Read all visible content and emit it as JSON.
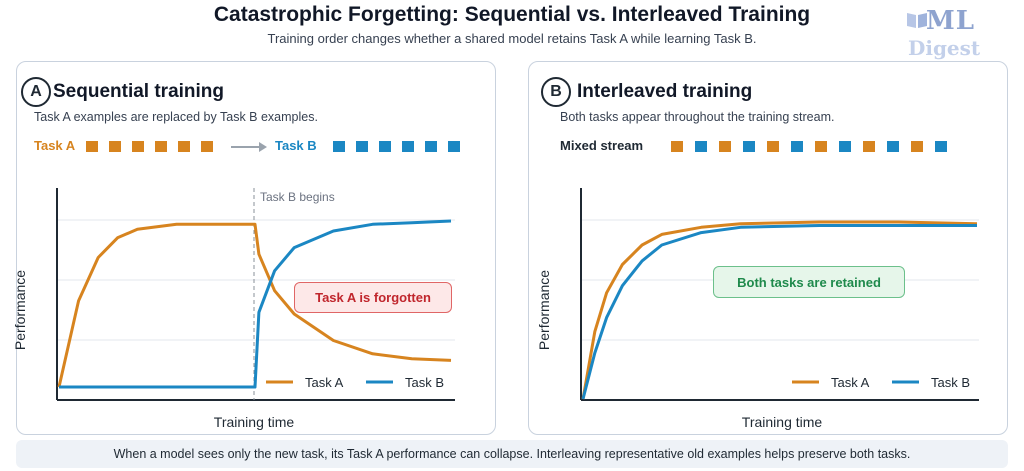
{
  "header": {
    "title": "Catastrophic Forgetting: Sequential vs. Interleaved Training",
    "subtitle": "Training order changes whether a shared model retains Task A while learning Task B."
  },
  "logo": {
    "line1": "ML",
    "line2": "Digest"
  },
  "colors": {
    "task_a": "#d7841f",
    "task_b": "#1b87c3",
    "forgotten": "#c0262d",
    "retained": "#1f8a4c"
  },
  "panel_a": {
    "badge": "A",
    "title": "Sequential training",
    "description": "Task A examples are replaced by Task B examples.",
    "stream_a_label": "Task A",
    "stream_b_label": "Task B",
    "arrow_icon": "arrow-right-icon",
    "chart_data": {
      "type": "line",
      "xlabel": "Training time",
      "ylabel": "Performance",
      "annotation": "Task B begins",
      "callout": "Task A is forgotten",
      "series": [
        {
          "name": "Task A",
          "points": [
            [
              0,
              0
            ],
            [
              0.05,
              0.52
            ],
            [
              0.1,
              0.78
            ],
            [
              0.15,
              0.9
            ],
            [
              0.2,
              0.95
            ],
            [
              0.3,
              0.98
            ],
            [
              0.4,
              0.98
            ],
            [
              0.5,
              0.98
            ],
            [
              0.51,
              0.8
            ],
            [
              0.55,
              0.58
            ],
            [
              0.6,
              0.44
            ],
            [
              0.7,
              0.28
            ],
            [
              0.8,
              0.2
            ],
            [
              0.9,
              0.17
            ],
            [
              1.0,
              0.16
            ]
          ]
        },
        {
          "name": "Task B",
          "points": [
            [
              0,
              0
            ],
            [
              0.1,
              0
            ],
            [
              0.2,
              0
            ],
            [
              0.3,
              0
            ],
            [
              0.4,
              0
            ],
            [
              0.5,
              0
            ],
            [
              0.51,
              0.45
            ],
            [
              0.55,
              0.7
            ],
            [
              0.6,
              0.84
            ],
            [
              0.7,
              0.94
            ],
            [
              0.8,
              0.98
            ],
            [
              0.9,
              0.99
            ],
            [
              1.0,
              1.0
            ]
          ]
        }
      ],
      "legend": [
        "Task A",
        "Task B"
      ]
    }
  },
  "panel_b": {
    "badge": "B",
    "title": "Interleaved training",
    "description": "Both tasks appear throughout the training stream.",
    "stream_label": "Mixed stream",
    "chart_data": {
      "type": "line",
      "xlabel": "Training time",
      "ylabel": "Performance",
      "callout": "Both tasks are retained",
      "series": [
        {
          "name": "Task A",
          "points": [
            [
              0,
              0
            ],
            [
              0.03,
              0.38
            ],
            [
              0.06,
              0.6
            ],
            [
              0.1,
              0.76
            ],
            [
              0.15,
              0.87
            ],
            [
              0.2,
              0.93
            ],
            [
              0.3,
              0.97
            ],
            [
              0.4,
              0.99
            ],
            [
              0.6,
              1.0
            ],
            [
              0.8,
              1.0
            ],
            [
              1.0,
              0.99
            ]
          ]
        },
        {
          "name": "Task B",
          "points": [
            [
              0,
              0
            ],
            [
              0.03,
              0.26
            ],
            [
              0.06,
              0.46
            ],
            [
              0.1,
              0.64
            ],
            [
              0.15,
              0.78
            ],
            [
              0.2,
              0.87
            ],
            [
              0.3,
              0.94
            ],
            [
              0.4,
              0.97
            ],
            [
              0.6,
              0.98
            ],
            [
              0.8,
              0.98
            ],
            [
              1.0,
              0.98
            ]
          ]
        }
      ],
      "legend": [
        "Task A",
        "Task B"
      ]
    }
  },
  "footer": "When a model sees only the new task, its Task A performance can collapse. Interleaving representative old examples helps preserve both tasks."
}
